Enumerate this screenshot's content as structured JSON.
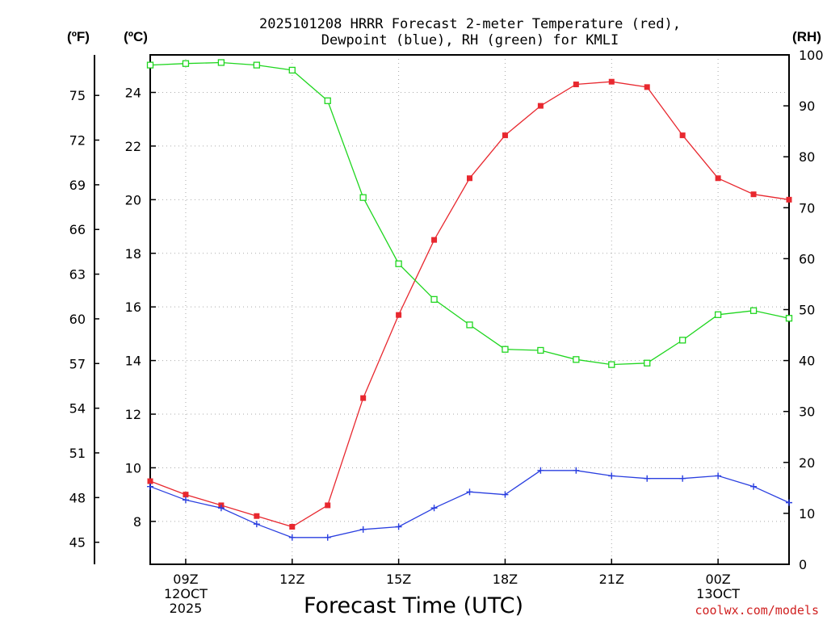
{
  "chart_data": {
    "type": "line",
    "title_line1": "2025101208 HRRR Forecast 2-meter Temperature (red),",
    "title_line2": "Dewpoint (blue), RH (green) for KMLI",
    "unit_f": "(ºF)",
    "unit_c": "(ºC)",
    "unit_rh": "(RH)",
    "xlabel": "Forecast Time (UTC)",
    "credit": "coolwx.com/models",
    "x_hours": [
      8,
      9,
      10,
      11,
      12,
      13,
      14,
      15,
      16,
      17,
      18,
      19,
      20,
      21,
      22,
      23,
      24,
      25,
      26
    ],
    "xlim": [
      8,
      26
    ],
    "x_ticks": [
      {
        "hour": 9,
        "lines": [
          "09Z",
          "12OCT",
          "2025"
        ]
      },
      {
        "hour": 12,
        "lines": [
          "12Z"
        ]
      },
      {
        "hour": 15,
        "lines": [
          "15Z"
        ]
      },
      {
        "hour": 18,
        "lines": [
          "18Z"
        ]
      },
      {
        "hour": 21,
        "lines": [
          "21Z"
        ]
      },
      {
        "hour": 24,
        "lines": [
          "00Z",
          "13OCT"
        ]
      }
    ],
    "celsius_axis": {
      "range": [
        6.4,
        25.4
      ],
      "ticks": [
        8,
        10,
        12,
        14,
        16,
        18,
        20,
        22,
        24
      ]
    },
    "fahrenheit_ticks": [
      45,
      48,
      51,
      54,
      57,
      60,
      63,
      66,
      69,
      72,
      75
    ],
    "rh_axis": {
      "range": [
        0,
        100
      ],
      "ticks": [
        0,
        10,
        20,
        30,
        40,
        50,
        60,
        70,
        80,
        90,
        100
      ]
    },
    "colors": {
      "temperature": "#e8282f",
      "dewpoint": "#2a3fe0",
      "rh": "#1fd61f",
      "credit": "#d02020",
      "grid": "#aaaaaa"
    },
    "series": [
      {
        "name": "Temperature",
        "units": "C",
        "marker": "filled-square",
        "values": [
          9.5,
          9.0,
          8.6,
          8.2,
          7.8,
          8.6,
          12.6,
          15.7,
          18.5,
          20.8,
          22.4,
          23.5,
          24.3,
          24.4,
          24.2,
          22.4,
          20.8,
          20.2,
          20.0
        ]
      },
      {
        "name": "Dewpoint",
        "units": "C",
        "marker": "plus",
        "values": [
          9.3,
          8.8,
          8.5,
          7.9,
          7.4,
          7.4,
          7.7,
          7.8,
          8.5,
          9.1,
          9.0,
          9.9,
          9.9,
          9.7,
          9.6,
          9.6,
          9.7,
          9.3,
          8.7
        ]
      },
      {
        "name": "RH",
        "units": "%",
        "marker": "open-square",
        "values": [
          98,
          98.3,
          98.5,
          98,
          97,
          91,
          72,
          59,
          52,
          47,
          42.2,
          42,
          40.2,
          39.2,
          39.5,
          44,
          49,
          49.8,
          48.3
        ]
      }
    ]
  }
}
